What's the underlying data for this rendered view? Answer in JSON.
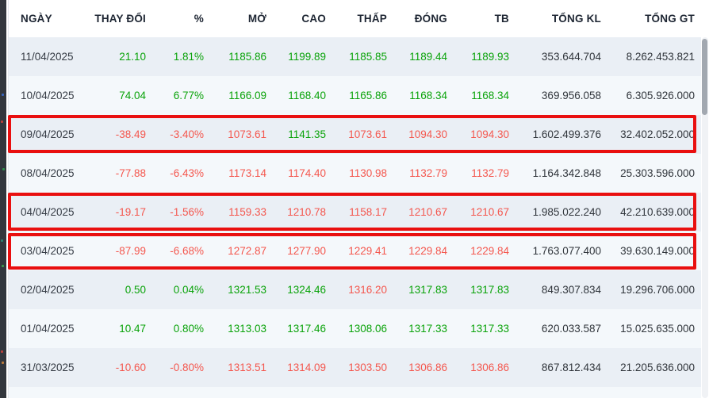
{
  "colors": {
    "green": "#0aa30a",
    "red": "#f4574e",
    "highlight_border": "#e90f0f",
    "row_odd_bg": "#eaeff5",
    "row_even_bg": "#f4f8fb"
  },
  "table": {
    "headers": [
      "NGÀY",
      "THAY ĐỔI",
      "%",
      "MỞ",
      "CAO",
      "THẤP",
      "ĐÓNG",
      "TB",
      "TỔNG KL",
      "TỔNG GT"
    ],
    "column_names": [
      "date",
      "change",
      "percent",
      "open",
      "high",
      "low",
      "close",
      "avg",
      "total-volume",
      "total-value"
    ],
    "rows": [
      {
        "date": "11/04/2025",
        "values": [
          "21.10",
          "1.81%",
          "1185.86",
          "1199.89",
          "1185.85",
          "1189.44",
          "1189.93",
          "353.644.704",
          "8.262.453.821"
        ],
        "colors": [
          "green",
          "green",
          "green",
          "green",
          "green",
          "green",
          "green",
          "dark",
          "dark"
        ],
        "highlighted": false
      },
      {
        "date": "10/04/2025",
        "values": [
          "74.04",
          "6.77%",
          "1166.09",
          "1168.40",
          "1165.86",
          "1168.34",
          "1168.34",
          "369.956.058",
          "6.305.926.000"
        ],
        "colors": [
          "green",
          "green",
          "green",
          "green",
          "green",
          "green",
          "green",
          "dark",
          "dark"
        ],
        "highlighted": false
      },
      {
        "date": "09/04/2025",
        "values": [
          "-38.49",
          "-3.40%",
          "1073.61",
          "1141.35",
          "1073.61",
          "1094.30",
          "1094.30",
          "1.602.499.376",
          "32.402.052.000"
        ],
        "colors": [
          "red",
          "red",
          "red",
          "green",
          "red",
          "red",
          "red",
          "dark",
          "dark"
        ],
        "highlighted": true
      },
      {
        "date": "08/04/2025",
        "values": [
          "-77.88",
          "-6.43%",
          "1173.14",
          "1174.40",
          "1130.98",
          "1132.79",
          "1132.79",
          "1.164.342.848",
          "25.303.596.000"
        ],
        "colors": [
          "red",
          "red",
          "red",
          "red",
          "red",
          "red",
          "red",
          "dark",
          "dark"
        ],
        "highlighted": false
      },
      {
        "date": "04/04/2025",
        "values": [
          "-19.17",
          "-1.56%",
          "1159.33",
          "1210.78",
          "1158.17",
          "1210.67",
          "1210.67",
          "1.985.022.240",
          "42.210.639.000"
        ],
        "colors": [
          "red",
          "red",
          "red",
          "red",
          "red",
          "red",
          "red",
          "dark",
          "dark"
        ],
        "highlighted": true
      },
      {
        "date": "03/04/2025",
        "values": [
          "-87.99",
          "-6.68%",
          "1272.87",
          "1277.90",
          "1229.41",
          "1229.84",
          "1229.84",
          "1.763.077.400",
          "39.630.149.000"
        ],
        "colors": [
          "red",
          "red",
          "red",
          "red",
          "red",
          "red",
          "red",
          "dark",
          "dark"
        ],
        "highlighted": true
      },
      {
        "date": "02/04/2025",
        "values": [
          "0.50",
          "0.04%",
          "1321.53",
          "1324.46",
          "1316.20",
          "1317.83",
          "1317.83",
          "849.307.834",
          "19.296.706.000"
        ],
        "colors": [
          "green",
          "green",
          "green",
          "green",
          "red",
          "green",
          "green",
          "dark",
          "dark"
        ],
        "highlighted": false
      },
      {
        "date": "01/04/2025",
        "values": [
          "10.47",
          "0.80%",
          "1313.03",
          "1317.46",
          "1308.06",
          "1317.33",
          "1317.33",
          "620.033.587",
          "15.025.635.000"
        ],
        "colors": [
          "green",
          "green",
          "green",
          "green",
          "green",
          "green",
          "green",
          "dark",
          "dark"
        ],
        "highlighted": false
      },
      {
        "date": "31/03/2025",
        "values": [
          "-10.60",
          "-0.80%",
          "1313.51",
          "1314.09",
          "1303.50",
          "1306.86",
          "1306.86",
          "867.812.434",
          "21.205.636.000"
        ],
        "colors": [
          "red",
          "red",
          "red",
          "red",
          "red",
          "red",
          "red",
          "dark",
          "dark"
        ],
        "highlighted": false
      }
    ]
  }
}
